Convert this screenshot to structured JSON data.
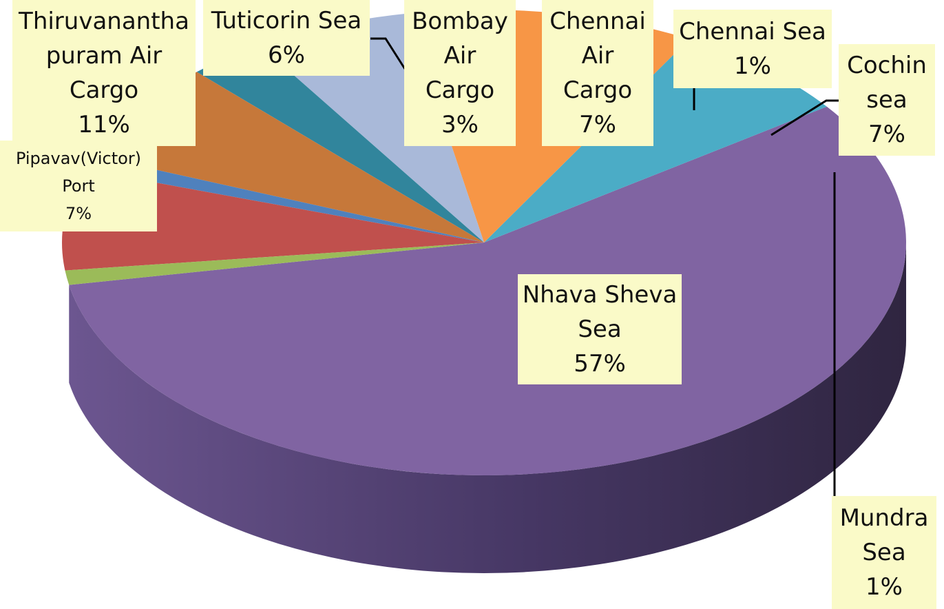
{
  "chart_data": {
    "type": "pie",
    "title": "",
    "style": "3d",
    "legend": "none",
    "slices": [
      {
        "category": "Nhava Sheva Sea",
        "value": 57,
        "label": "Nhava Sheva\nSea\n57%",
        "color": "#8064a2"
      },
      {
        "category": "Pipavav(Victor) Port",
        "value": 7,
        "label": "Pipavav(Victor)\nPort\n7%",
        "color": "#4bacc6"
      },
      {
        "category": "Thiruvanantha puram Air Cargo",
        "value": 11,
        "label": "Thiruvanantha\npuram Air\nCargo\n11%",
        "color": "#f79646"
      },
      {
        "category": "Tuticorin Sea",
        "value": 6,
        "label": "Tuticorin Sea\n6%",
        "color": "#a9b9d9"
      },
      {
        "category": "Bombay Air Cargo",
        "value": 3,
        "label": "Bombay\nAir\nCargo\n3%",
        "color": "#31859c"
      },
      {
        "category": "Chennai Air Cargo",
        "value": 7,
        "label": "Chennai\nAir\nCargo\n7%",
        "color": "#c6783a"
      },
      {
        "category": "Chennai Sea",
        "value": 1,
        "label": "Chennai Sea\n1%",
        "color": "#4f81bd"
      },
      {
        "category": "Cochin sea",
        "value": 7,
        "label": "Cochin\nsea\n7%",
        "color": "#c0504d"
      },
      {
        "category": "Mundra Sea",
        "value": 1,
        "label": "Mundra\nSea\n1%",
        "color": "#9bbb59"
      }
    ]
  }
}
